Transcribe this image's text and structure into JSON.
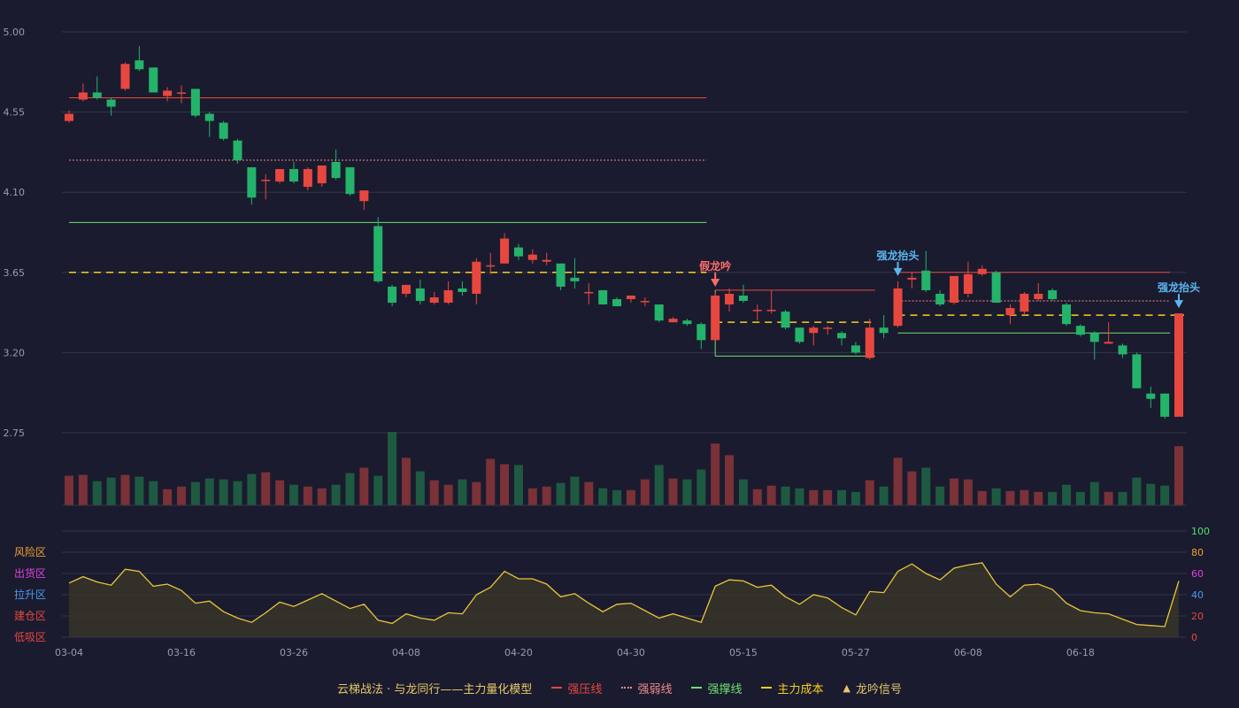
{
  "colors": {
    "background": "#1a1b2e",
    "grid": "#34364a",
    "axis_text": "#9a9cad",
    "up": "#e8473f",
    "down": "#24b36b",
    "vol_up": "#7a3137",
    "vol_down": "#1e5a41",
    "pressure": "#e8473f",
    "weak": "#f08a8a",
    "support": "#6ee06e",
    "cost": "#f5d020",
    "osc_line": "#e9c63a",
    "fake_signal": "#ff6b6b",
    "strong_signal": "#5ab7f2",
    "title": "#e6c76a"
  },
  "legend": {
    "title": "云梯战法 · 与龙同行——主力量化模型",
    "items": [
      {
        "label": "强压线",
        "color": "#e8473f",
        "style": "solid"
      },
      {
        "label": "强弱线",
        "color": "#f08a8a",
        "style": "dotted"
      },
      {
        "label": "强撑线",
        "color": "#6ee06e",
        "style": "solid"
      },
      {
        "label": "主力成本",
        "color": "#f5d020",
        "style": "dashed"
      },
      {
        "label": "龙吟信号",
        "color": "#e6c76a",
        "style": "triangle"
      }
    ]
  },
  "chart_data": {
    "type": "candlestick",
    "price_axis": {
      "ticks": [
        "5.00",
        "4.55",
        "4.10",
        "3.65",
        "3.20",
        "2.75"
      ],
      "ylim": [
        2.75,
        5.0
      ]
    },
    "x_tick_labels": [
      {
        "label": "03-04",
        "index": 0
      },
      {
        "label": "03-16",
        "index": 8
      },
      {
        "label": "03-26",
        "index": 16
      },
      {
        "label": "04-08",
        "index": 24
      },
      {
        "label": "04-20",
        "index": 32
      },
      {
        "label": "04-30",
        "index": 40
      },
      {
        "label": "05-15",
        "index": 48
      },
      {
        "label": "05-27",
        "index": 56
      },
      {
        "label": "06-08",
        "index": 64
      },
      {
        "label": "06-18",
        "index": 72
      }
    ],
    "candles": [
      [
        4.5,
        4.54,
        4.56,
        4.49
      ],
      [
        4.62,
        4.66,
        4.71,
        4.61
      ],
      [
        4.66,
        4.63,
        4.75,
        4.62
      ],
      [
        4.62,
        4.58,
        4.63,
        4.53
      ],
      [
        4.68,
        4.82,
        4.83,
        4.67
      ],
      [
        4.84,
        4.79,
        4.92,
        4.78
      ],
      [
        4.8,
        4.66,
        4.8,
        4.66
      ],
      [
        4.64,
        4.67,
        4.69,
        4.61
      ],
      [
        4.66,
        4.66,
        4.7,
        4.6
      ],
      [
        4.68,
        4.53,
        4.68,
        4.52
      ],
      [
        4.54,
        4.5,
        4.55,
        4.41
      ],
      [
        4.49,
        4.4,
        4.5,
        4.39
      ],
      [
        4.39,
        4.28,
        4.4,
        4.26
      ],
      [
        4.24,
        4.07,
        4.24,
        4.03
      ],
      [
        4.17,
        4.17,
        4.2,
        4.06
      ],
      [
        4.16,
        4.23,
        4.23,
        4.15
      ],
      [
        4.23,
        4.16,
        4.27,
        4.15
      ],
      [
        4.13,
        4.23,
        4.24,
        4.11
      ],
      [
        4.15,
        4.25,
        4.25,
        4.13
      ],
      [
        4.27,
        4.18,
        4.34,
        4.17
      ],
      [
        4.24,
        4.09,
        4.24,
        4.08
      ],
      [
        4.05,
        4.11,
        4.11,
        4.0
      ],
      [
        3.91,
        3.6,
        3.96,
        3.59
      ],
      [
        3.57,
        3.48,
        3.58,
        3.46
      ],
      [
        3.53,
        3.58,
        3.58,
        3.51
      ],
      [
        3.56,
        3.49,
        3.61,
        3.47
      ],
      [
        3.48,
        3.51,
        3.54,
        3.47
      ],
      [
        3.48,
        3.55,
        3.6,
        3.47
      ],
      [
        3.56,
        3.54,
        3.6,
        3.52
      ],
      [
        3.53,
        3.71,
        3.73,
        3.47
      ],
      [
        3.69,
        3.69,
        3.76,
        3.64
      ],
      [
        3.7,
        3.84,
        3.87,
        3.7
      ],
      [
        3.79,
        3.74,
        3.81,
        3.72
      ],
      [
        3.72,
        3.75,
        3.78,
        3.7
      ],
      [
        3.71,
        3.72,
        3.76,
        3.69
      ],
      [
        3.7,
        3.57,
        3.7,
        3.55
      ],
      [
        3.62,
        3.6,
        3.73,
        3.56
      ],
      [
        3.54,
        3.54,
        3.59,
        3.47
      ],
      [
        3.55,
        3.47,
        3.55,
        3.47
      ],
      [
        3.5,
        3.46,
        3.51,
        3.46
      ],
      [
        3.5,
        3.52,
        3.52,
        3.48
      ],
      [
        3.49,
        3.49,
        3.51,
        3.46
      ],
      [
        3.47,
        3.38,
        3.47,
        3.37
      ],
      [
        3.37,
        3.39,
        3.4,
        3.37
      ],
      [
        3.38,
        3.36,
        3.39,
        3.35
      ],
      [
        3.36,
        3.27,
        3.37,
        3.22
      ],
      [
        3.27,
        3.52,
        3.54,
        3.27
      ],
      [
        3.47,
        3.53,
        3.56,
        3.43
      ],
      [
        3.52,
        3.49,
        3.58,
        3.48
      ],
      [
        3.44,
        3.44,
        3.47,
        3.38
      ],
      [
        3.44,
        3.44,
        3.55,
        3.42
      ],
      [
        3.43,
        3.34,
        3.44,
        3.33
      ],
      [
        3.34,
        3.26,
        3.34,
        3.25
      ],
      [
        3.31,
        3.34,
        3.35,
        3.24
      ],
      [
        3.34,
        3.34,
        3.35,
        3.3
      ],
      [
        3.31,
        3.28,
        3.32,
        3.24
      ],
      [
        3.24,
        3.2,
        3.26,
        3.19
      ],
      [
        3.17,
        3.34,
        3.39,
        3.16
      ],
      [
        3.34,
        3.31,
        3.41,
        3.28
      ],
      [
        3.35,
        3.56,
        3.6,
        3.34
      ],
      [
        3.61,
        3.62,
        3.65,
        3.56
      ],
      [
        3.66,
        3.55,
        3.77,
        3.54
      ],
      [
        3.53,
        3.47,
        3.55,
        3.46
      ],
      [
        3.48,
        3.63,
        3.63,
        3.47
      ],
      [
        3.53,
        3.64,
        3.71,
        3.51
      ],
      [
        3.64,
        3.67,
        3.69,
        3.63
      ],
      [
        3.65,
        3.48,
        3.66,
        3.48
      ],
      [
        3.41,
        3.45,
        3.47,
        3.36
      ],
      [
        3.43,
        3.53,
        3.54,
        3.41
      ],
      [
        3.5,
        3.53,
        3.59,
        3.49
      ],
      [
        3.55,
        3.5,
        3.56,
        3.49
      ],
      [
        3.47,
        3.36,
        3.48,
        3.35
      ],
      [
        3.35,
        3.3,
        3.36,
        3.29
      ],
      [
        3.31,
        3.26,
        3.32,
        3.16
      ],
      [
        3.25,
        3.26,
        3.37,
        3.25
      ],
      [
        3.24,
        3.19,
        3.25,
        3.17
      ],
      [
        3.19,
        3.0,
        3.2,
        3.0
      ],
      [
        2.97,
        2.94,
        3.01,
        2.89
      ],
      [
        2.97,
        2.84,
        2.97,
        2.83
      ],
      [
        2.84,
        3.42,
        3.42,
        2.84
      ]
    ],
    "volume": [
      33,
      34,
      27,
      31,
      34,
      32,
      27,
      18,
      21,
      26,
      30,
      29,
      27,
      35,
      37,
      28,
      23,
      21,
      19,
      23,
      36,
      42,
      33,
      82,
      53,
      38,
      28,
      23,
      29,
      26,
      52,
      46,
      45,
      19,
      21,
      25,
      32,
      26,
      19,
      17,
      17,
      29,
      45,
      30,
      29,
      40,
      69,
      56,
      29,
      18,
      22,
      21,
      19,
      17,
      17,
      17,
      15,
      28,
      21,
      53,
      38,
      42,
      21,
      30,
      29,
      16,
      19,
      16,
      17,
      15,
      15,
      23,
      15,
      26,
      15,
      15,
      31,
      24,
      22,
      66
    ],
    "oscillator": {
      "axis_ticks": [
        0,
        20,
        40,
        60,
        80,
        100
      ],
      "zones": [
        "风险区",
        "出货区",
        "拉升区",
        "建仓区",
        "低吸区"
      ],
      "values": [
        51,
        57,
        52,
        49,
        64,
        62,
        48,
        50,
        44,
        32,
        34,
        24,
        18,
        14,
        23,
        33,
        29,
        35,
        41,
        34,
        27,
        31,
        16,
        13,
        22,
        18,
        16,
        23,
        22,
        40,
        47,
        62,
        55,
        55,
        50,
        38,
        41,
        32,
        24,
        31,
        32,
        25,
        18,
        22,
        18,
        14,
        48,
        54,
        53,
        47,
        49,
        38,
        31,
        40,
        37,
        28,
        21,
        43,
        42,
        62,
        69,
        60,
        54,
        65,
        68,
        70,
        50,
        38,
        49,
        50,
        45,
        32,
        25,
        23,
        22,
        17,
        12,
        11,
        10,
        53
      ]
    },
    "levels": [
      {
        "name": "强压线",
        "style": "solid",
        "value": 4.63,
        "from": 0,
        "to": 45
      },
      {
        "name": "强弱线",
        "style": "dotted",
        "value": 4.28,
        "from": 0,
        "to": 45
      },
      {
        "name": "强撑线",
        "style": "solid",
        "value": 3.93,
        "from": 0,
        "to": 45
      },
      {
        "name": "主力成本",
        "style": "dashed",
        "value": 3.65,
        "from": 0,
        "to": 45
      },
      {
        "name": "强压线",
        "style": "solid",
        "value": 3.55,
        "from": 46,
        "to": 57
      },
      {
        "name": "主力成本",
        "style": "dashed",
        "value": 3.37,
        "from": 46,
        "to": 57
      },
      {
        "name": "强撑线",
        "style": "solid",
        "value": 3.18,
        "from": 46,
        "to": 57
      },
      {
        "name": "强压线",
        "style": "solid",
        "value": 3.65,
        "from": 59,
        "to": 78
      },
      {
        "name": "强弱线",
        "style": "dotted",
        "value": 3.49,
        "from": 59,
        "to": 78
      },
      {
        "name": "主力成本",
        "style": "dashed",
        "value": 3.41,
        "from": 59,
        "to": 79
      },
      {
        "name": "强撑线",
        "style": "solid",
        "value": 3.31,
        "from": 59,
        "to": 78
      }
    ],
    "signals": [
      {
        "label": "假龙吟",
        "index": 46,
        "type": "fake"
      },
      {
        "label": "强龙抬头",
        "index": 59,
        "type": "strong"
      },
      {
        "label": "强龙抬头",
        "index": 79,
        "type": "strong"
      }
    ]
  }
}
